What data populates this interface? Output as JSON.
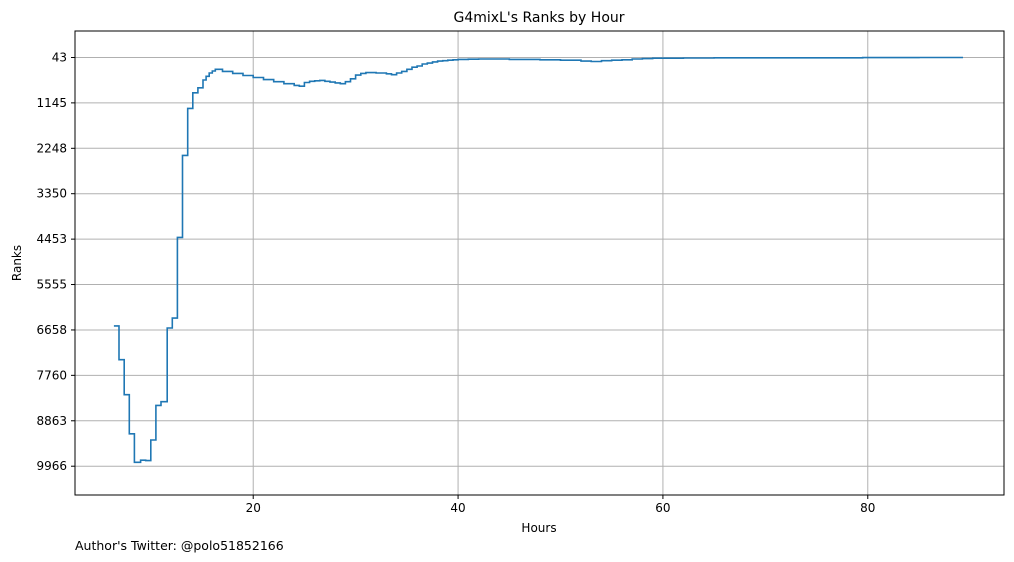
{
  "chart_data": {
    "type": "line",
    "step": true,
    "title": "G4mixL's Ranks by Hour",
    "xlabel": "Hours",
    "ylabel": "Ranks",
    "xlim": [
      2.6,
      93.3
    ],
    "ylim": [
      10665,
      -600
    ],
    "y_inverted": true,
    "grid": true,
    "x_ticks": [
      20,
      40,
      60,
      80
    ],
    "y_ticks": [
      43,
      1145,
      2248,
      3350,
      4453,
      5555,
      6658,
      7760,
      8863,
      9966
    ],
    "series": [
      {
        "color": "#1f77b4",
        "x": [
          6.4,
          6.9,
          7.4,
          7.9,
          8.4,
          9.0,
          9.5,
          10.0,
          10.5,
          11.0,
          11.6,
          12.1,
          12.6,
          13.1,
          13.6,
          14.1,
          14.6,
          15.1,
          15.4,
          15.7,
          16.0,
          16.3,
          16.6,
          17.0,
          18.0,
          19.0,
          20.0,
          21.0,
          22.0,
          23.0,
          24.0,
          24.5,
          25.0,
          25.5,
          26.0,
          26.5,
          27.0,
          27.5,
          28.0,
          28.5,
          29.0,
          29.5,
          30.0,
          30.5,
          31.0,
          32.0,
          33.0,
          33.5,
          34.0,
          34.5,
          35.0,
          35.5,
          36.0,
          36.5,
          37.0,
          37.5,
          38.0,
          38.5,
          39.0,
          39.5,
          40.0,
          41.0,
          42.0,
          43.0,
          45.0,
          48.0,
          50.0,
          52.0,
          53.0,
          54.0,
          55.0,
          56.0,
          57.0,
          58.0,
          59.0,
          60.0,
          62.0,
          65.0,
          70.0,
          75.0,
          79.5,
          85.0,
          89.3
        ],
        "y": [
          6560,
          7380,
          8230,
          9180,
          9870,
          9820,
          9830,
          9330,
          8490,
          8400,
          6610,
          6370,
          4410,
          2420,
          1280,
          900,
          780,
          590,
          500,
          420,
          370,
          330,
          330,
          380,
          430,
          480,
          530,
          580,
          630,
          680,
          720,
          740,
          650,
          620,
          610,
          600,
          620,
          640,
          660,
          680,
          630,
          560,
          470,
          430,
          410,
          420,
          440,
          460,
          420,
          380,
          330,
          280,
          250,
          200,
          180,
          150,
          130,
          120,
          110,
          100,
          90,
          85,
          80,
          80,
          90,
          100,
          110,
          130,
          140,
          120,
          110,
          100,
          80,
          70,
          60,
          60,
          55,
          50,
          50,
          50,
          45,
          43,
          43
        ]
      }
    ]
  },
  "footer": {
    "text": "Author's Twitter: @polo51852166"
  }
}
